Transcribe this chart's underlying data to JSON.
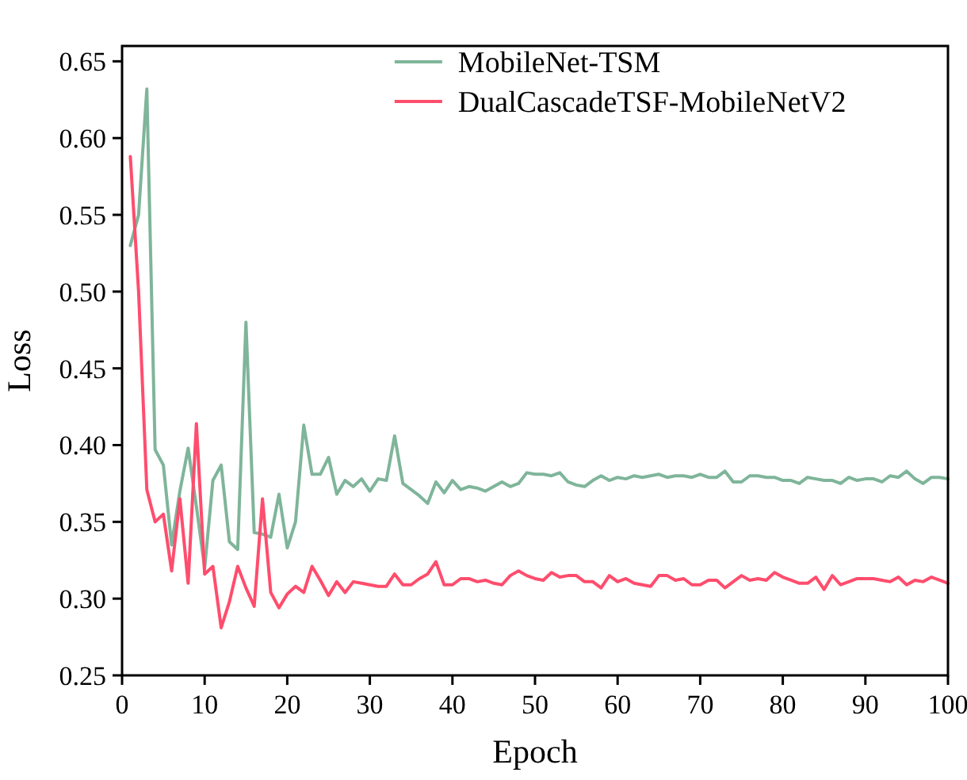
{
  "chart_data": {
    "type": "line",
    "xlabel": "Epoch",
    "ylabel": "Loss",
    "x": [
      1,
      2,
      3,
      4,
      5,
      6,
      7,
      8,
      9,
      10,
      11,
      12,
      13,
      14,
      15,
      16,
      17,
      18,
      19,
      20,
      21,
      22,
      23,
      24,
      25,
      26,
      27,
      28,
      29,
      30,
      31,
      32,
      33,
      34,
      35,
      36,
      37,
      38,
      39,
      40,
      41,
      42,
      43,
      44,
      45,
      46,
      47,
      48,
      49,
      50,
      51,
      52,
      53,
      54,
      55,
      56,
      57,
      58,
      59,
      60,
      61,
      62,
      63,
      64,
      65,
      66,
      67,
      68,
      69,
      70,
      71,
      72,
      73,
      74,
      75,
      76,
      77,
      78,
      79,
      80,
      81,
      82,
      83,
      84,
      85,
      86,
      87,
      88,
      89,
      90,
      91,
      92,
      93,
      94,
      95,
      96,
      97,
      98,
      99,
      100
    ],
    "series": [
      {
        "name": "MobileNet-TSM",
        "color": "#7fb59a",
        "values": [
          0.53,
          0.55,
          0.632,
          0.397,
          0.387,
          0.335,
          0.37,
          0.398,
          0.36,
          0.32,
          0.377,
          0.387,
          0.337,
          0.332,
          0.48,
          0.343,
          0.342,
          0.34,
          0.368,
          0.333,
          0.35,
          0.413,
          0.381,
          0.381,
          0.392,
          0.368,
          0.377,
          0.373,
          0.378,
          0.37,
          0.378,
          0.377,
          0.406,
          0.375,
          0.371,
          0.367,
          0.362,
          0.376,
          0.369,
          0.377,
          0.371,
          0.373,
          0.372,
          0.37,
          0.373,
          0.376,
          0.373,
          0.375,
          0.382,
          0.381,
          0.381,
          0.38,
          0.382,
          0.376,
          0.374,
          0.373,
          0.377,
          0.38,
          0.377,
          0.379,
          0.378,
          0.38,
          0.379,
          0.38,
          0.381,
          0.379,
          0.38,
          0.38,
          0.379,
          0.381,
          0.379,
          0.379,
          0.383,
          0.376,
          0.376,
          0.38,
          0.38,
          0.379,
          0.379,
          0.377,
          0.377,
          0.375,
          0.379,
          0.378,
          0.377,
          0.377,
          0.375,
          0.379,
          0.377,
          0.378,
          0.378,
          0.376,
          0.38,
          0.379,
          0.383,
          0.378,
          0.375,
          0.379,
          0.379,
          0.378
        ]
      },
      {
        "name": "DualCascadeTSF-MobileNetV2",
        "color": "#ff4d6d",
        "values": [
          0.588,
          0.5,
          0.371,
          0.35,
          0.355,
          0.318,
          0.365,
          0.31,
          0.414,
          0.316,
          0.321,
          0.281,
          0.298,
          0.321,
          0.307,
          0.295,
          0.365,
          0.304,
          0.294,
          0.303,
          0.308,
          0.304,
          0.321,
          0.312,
          0.302,
          0.311,
          0.304,
          0.311,
          0.31,
          0.309,
          0.308,
          0.308,
          0.316,
          0.309,
          0.309,
          0.313,
          0.316,
          0.324,
          0.309,
          0.309,
          0.313,
          0.313,
          0.311,
          0.312,
          0.31,
          0.309,
          0.315,
          0.318,
          0.315,
          0.313,
          0.312,
          0.317,
          0.314,
          0.315,
          0.315,
          0.311,
          0.311,
          0.307,
          0.315,
          0.311,
          0.313,
          0.31,
          0.309,
          0.308,
          0.315,
          0.315,
          0.312,
          0.313,
          0.309,
          0.309,
          0.312,
          0.312,
          0.307,
          0.311,
          0.315,
          0.312,
          0.313,
          0.312,
          0.317,
          0.314,
          0.312,
          0.31,
          0.31,
          0.314,
          0.306,
          0.315,
          0.309,
          0.311,
          0.313,
          0.313,
          0.313,
          0.312,
          0.311,
          0.314,
          0.309,
          0.312,
          0.311,
          0.314,
          0.312,
          0.31
        ]
      }
    ],
    "xlim": [
      0,
      100
    ],
    "xticks": [
      0,
      10,
      20,
      30,
      40,
      50,
      60,
      70,
      80,
      90,
      100
    ],
    "ylim": [
      0.25,
      0.66
    ],
    "yticks": [
      {
        "value": 0.25,
        "label": "0.25"
      },
      {
        "value": 0.3,
        "label": "0.30"
      },
      {
        "value": 0.35,
        "label": "0.35"
      },
      {
        "value": 0.4,
        "label": "0.40"
      },
      {
        "value": 0.45,
        "label": "0.45"
      },
      {
        "value": 0.5,
        "label": "0.50"
      },
      {
        "value": 0.55,
        "label": "0.55"
      },
      {
        "value": 0.6,
        "label": "0.60"
      },
      {
        "value": 0.65,
        "label": "0.65"
      }
    ],
    "grid": false,
    "legend": "top right",
    "marker": "none",
    "line_style": "solid"
  }
}
